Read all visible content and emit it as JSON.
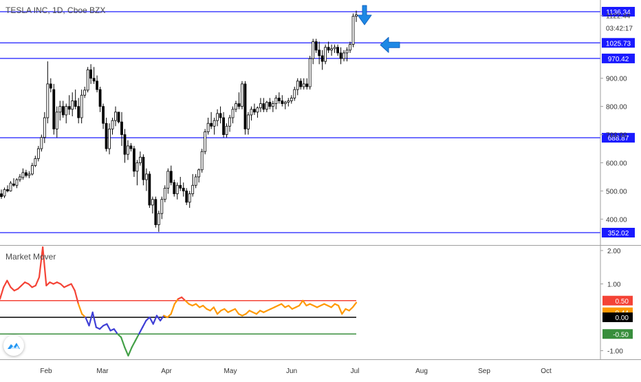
{
  "chart_data": [
    {
      "type": "candlestick",
      "title": "TESLA INC, 1D, Cboe BZX",
      "y_axis_scale": "linear",
      "y_ticks": [
        "1122.44",
        "900.00",
        "800.00",
        "700.00",
        "600.00",
        "500.00",
        "400.00"
      ],
      "countdown": "03:42:17",
      "x_ticks": [
        "Feb",
        "Mar",
        "Apr",
        "May",
        "Jun",
        "Jul",
        "Aug",
        "Sep",
        "Oct"
      ],
      "grid": false,
      "horizontal_lines": [
        {
          "value": 1136.34,
          "label": "1136.34"
        },
        {
          "value": 1025.73,
          "label": "1025.73"
        },
        {
          "value": 970.42,
          "label": "970.42"
        },
        {
          "value": 688.87,
          "label": "688.87"
        },
        {
          "value": 352.02,
          "label": "352.02"
        }
      ],
      "annotations": [
        "down-arrow above latest candle",
        "left-arrow at 1025.73 level"
      ],
      "candles_ohlc": [
        [
          490,
          505,
          472,
          480
        ],
        [
          482,
          512,
          475,
          505
        ],
        [
          505,
          520,
          495,
          500
        ],
        [
          500,
          535,
          498,
          528
        ],
        [
          525,
          545,
          515,
          520
        ],
        [
          520,
          545,
          510,
          540
        ],
        [
          540,
          560,
          532,
          550
        ],
        [
          548,
          580,
          540,
          565
        ],
        [
          565,
          575,
          548,
          555
        ],
        [
          555,
          570,
          545,
          560
        ],
        [
          560,
          600,
          555,
          590
        ],
        [
          590,
          625,
          585,
          615
        ],
        [
          615,
          660,
          605,
          650
        ],
        [
          650,
          700,
          640,
          690
        ],
        [
          690,
          780,
          670,
          760
        ],
        [
          760,
          960,
          740,
          880
        ],
        [
          880,
          900,
          850,
          865
        ],
        [
          860,
          880,
          700,
          720
        ],
        [
          720,
          800,
          690,
          780
        ],
        [
          780,
          820,
          750,
          800
        ],
        [
          800,
          820,
          760,
          770
        ],
        [
          770,
          810,
          740,
          800
        ],
        [
          800,
          840,
          770,
          790
        ],
        [
          790,
          850,
          765,
          820
        ],
        [
          820,
          860,
          790,
          800
        ],
        [
          800,
          830,
          740,
          760
        ],
        [
          760,
          860,
          740,
          840
        ],
        [
          840,
          870,
          830,
          858
        ],
        [
          858,
          940,
          850,
          930
        ],
        [
          930,
          950,
          880,
          900
        ],
        [
          900,
          940,
          880,
          890
        ],
        [
          890,
          910,
          850,
          860
        ],
        [
          860,
          870,
          780,
          800
        ],
        [
          800,
          810,
          720,
          740
        ],
        [
          740,
          760,
          640,
          650
        ],
        [
          650,
          740,
          630,
          720
        ],
        [
          720,
          760,
          700,
          750
        ],
        [
          750,
          800,
          730,
          780
        ],
        [
          780,
          780,
          740,
          745
        ],
        [
          745,
          780,
          660,
          700
        ],
        [
          700,
          720,
          600,
          630
        ],
        [
          630,
          680,
          610,
          660
        ],
        [
          660,
          670,
          640,
          650
        ],
        [
          650,
          660,
          550,
          570
        ],
        [
          570,
          610,
          520,
          600
        ],
        [
          600,
          640,
          590,
          620
        ],
        [
          620,
          630,
          520,
          540
        ],
        [
          540,
          580,
          500,
          560
        ],
        [
          560,
          570,
          440,
          450
        ],
        [
          450,
          480,
          420,
          470
        ],
        [
          470,
          480,
          370,
          380
        ],
        [
          380,
          430,
          355,
          420
        ],
        [
          420,
          480,
          400,
          470
        ],
        [
          470,
          520,
          460,
          510
        ],
        [
          510,
          580,
          490,
          570
        ],
        [
          570,
          590,
          520,
          530
        ],
        [
          530,
          540,
          480,
          490
        ],
        [
          490,
          530,
          470,
          520
        ],
        [
          520,
          550,
          500,
          510
        ],
        [
          510,
          530,
          480,
          500
        ],
        [
          500,
          510,
          450,
          460
        ],
        [
          460,
          500,
          440,
          490
        ],
        [
          490,
          560,
          480,
          520
        ],
        [
          520,
          560,
          510,
          550
        ],
        [
          550,
          580,
          530,
          575
        ],
        [
          575,
          650,
          565,
          640
        ],
        [
          640,
          720,
          630,
          710
        ],
        [
          710,
          760,
          700,
          740
        ],
        [
          740,
          780,
          720,
          730
        ],
        [
          730,
          760,
          700,
          750
        ],
        [
          750,
          790,
          730,
          775
        ],
        [
          775,
          800,
          740,
          760
        ],
        [
          760,
          780,
          690,
          700
        ],
        [
          700,
          740,
          690,
          730
        ],
        [
          730,
          770,
          710,
          760
        ],
        [
          760,
          800,
          740,
          790
        ],
        [
          790,
          820,
          780,
          810
        ],
        [
          810,
          850,
          790,
          800
        ],
        [
          800,
          890,
          790,
          880
        ],
        [
          880,
          890,
          700,
          720
        ],
        [
          720,
          780,
          700,
          770
        ],
        [
          770,
          800,
          750,
          790
        ],
        [
          790,
          810,
          770,
          780
        ],
        [
          780,
          800,
          760,
          795
        ],
        [
          795,
          830,
          780,
          810
        ],
        [
          810,
          830,
          780,
          790
        ],
        [
          790,
          820,
          780,
          815
        ],
        [
          815,
          830,
          790,
          800
        ],
        [
          800,
          820,
          780,
          810
        ],
        [
          810,
          840,
          790,
          830
        ],
        [
          830,
          850,
          810,
          820
        ],
        [
          820,
          840,
          800,
          810
        ],
        [
          810,
          820,
          790,
          815
        ],
        [
          815,
          830,
          800,
          820
        ],
        [
          820,
          840,
          810,
          830
        ],
        [
          830,
          870,
          820,
          860
        ],
        [
          860,
          900,
          840,
          890
        ],
        [
          890,
          900,
          860,
          870
        ],
        [
          870,
          900,
          860,
          880
        ],
        [
          880,
          900,
          860,
          870
        ],
        [
          870,
          980,
          860,
          970
        ],
        [
          970,
          1040,
          950,
          1030
        ],
        [
          1030,
          1040,
          990,
          1000
        ],
        [
          1000,
          1030,
          950,
          980
        ],
        [
          980,
          1000,
          930,
          960
        ],
        [
          960,
          1020,
          950,
          1010
        ],
        [
          1010,
          1030,
          990,
          1000
        ],
        [
          1000,
          1020,
          980,
          1005
        ],
        [
          1005,
          1020,
          990,
          1010
        ],
        [
          1010,
          1020,
          980,
          990
        ],
        [
          990,
          1010,
          950,
          970
        ],
        [
          970,
          1000,
          960,
          990
        ],
        [
          990,
          1010,
          960,
          1000
        ],
        [
          1000,
          1030,
          990,
          1020
        ],
        [
          1020,
          1130,
          1010,
          1120
        ],
        [
          1120,
          1140,
          1100,
          1125
        ]
      ]
    },
    {
      "type": "line",
      "title": "Market Mover",
      "y_axis_scale": "linear",
      "y_ticks": [
        "2.00",
        "1.00",
        "-1.00"
      ],
      "grid": false,
      "horizontal_lines": [
        {
          "value": 0.5,
          "label": "0.50",
          "color": "#f44336"
        },
        {
          "value": 0.44,
          "label": "0.44",
          "color": "#ff9800"
        },
        {
          "value": 0.0,
          "label": "0.00",
          "color": "#000000"
        },
        {
          "value": -0.5,
          "label": "-0.50",
          "color": "#388e3c"
        }
      ],
      "level_lines_drawn": [
        {
          "value": 0.5,
          "color": "#f44336"
        },
        {
          "value": 0.0,
          "color": "#000000"
        },
        {
          "value": -0.5,
          "color": "#388e3c"
        }
      ],
      "series": [
        {
          "values": [
            0.55,
            0.9,
            1.1,
            0.9,
            0.8,
            0.85,
            0.95,
            1.05,
            1.0,
            0.9,
            0.95,
            1.2,
            2.1,
            0.95,
            1.05,
            1.0,
            1.05,
            1.0,
            0.9,
            0.95,
            1.0,
            0.8,
            0.4,
            0.1,
            0.0,
            -0.25,
            0.15,
            -0.3,
            -0.35,
            -0.25,
            -0.2,
            -0.4,
            -0.35,
            -0.5,
            -0.6,
            -0.9,
            -1.15,
            -0.9,
            -0.7,
            -0.5,
            -0.3,
            -0.1,
            0.0,
            -0.2,
            0.05,
            -0.1,
            0.05,
            0.0,
            0.1,
            0.4,
            0.55,
            0.6,
            0.5,
            0.4,
            0.35,
            0.4,
            0.3,
            0.35,
            0.25,
            0.2,
            0.3,
            0.1,
            0.2,
            0.25,
            0.15,
            0.2,
            0.25,
            0.1,
            0.05,
            0.1,
            0.2,
            0.15,
            0.1,
            0.2,
            0.15,
            0.2,
            0.25,
            0.3,
            0.35,
            0.4,
            0.3,
            0.35,
            0.25,
            0.3,
            0.35,
            0.5,
            0.35,
            0.4,
            0.35,
            0.3,
            0.35,
            0.4,
            0.35,
            0.3,
            0.4,
            0.35,
            0.1,
            0.25,
            0.2,
            0.3,
            0.44
          ],
          "color_segments": "red above 0.5, orange 0 to 0.5, blue below 0, green below -0.5"
        }
      ]
    }
  ]
}
